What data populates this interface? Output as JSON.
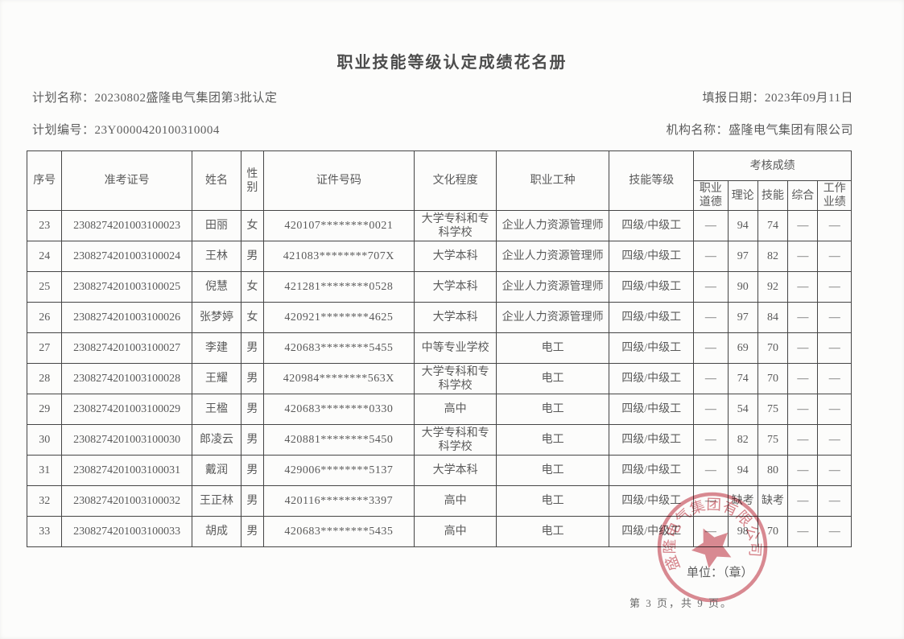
{
  "title": "职业技能等级认定成绩花名册",
  "meta": {
    "plan_name_label": "计划名称：",
    "plan_name": "20230802盛隆电气集团第3批认定",
    "report_date_label": "填报日期：",
    "report_date": "2023年09月11日",
    "plan_number_label": "计划编号：",
    "plan_number": "23Y0000420100310004",
    "org_name_label": "机构名称：",
    "org_name": "盛隆电气集团有限公司"
  },
  "table": {
    "headers": {
      "seq": "序号",
      "exam_no": "准考证号",
      "name": "姓名",
      "gender": "性别",
      "id_no": "证件号码",
      "education": "文化程度",
      "occupation": "职业工种",
      "skill_level": "技能等级",
      "scores_group": "考核成绩",
      "score_cols": [
        "职业道德",
        "理论",
        "技能",
        "综合",
        "工作业绩"
      ]
    },
    "rows": [
      {
        "seq": "23",
        "exam_no": "2308274201003100023",
        "name": "田丽",
        "gender": "女",
        "id_no": "420107********0021",
        "education": "大学专科和专科学校",
        "occupation": "企业人力资源管理师",
        "skill_level": "四级/中级工",
        "scores": [
          "—",
          "94",
          "74",
          "—",
          "—"
        ]
      },
      {
        "seq": "24",
        "exam_no": "2308274201003100024",
        "name": "王林",
        "gender": "男",
        "id_no": "421083********707X",
        "education": "大学本科",
        "occupation": "企业人力资源管理师",
        "skill_level": "四级/中级工",
        "scores": [
          "—",
          "97",
          "82",
          "—",
          "—"
        ]
      },
      {
        "seq": "25",
        "exam_no": "2308274201003100025",
        "name": "倪慧",
        "gender": "女",
        "id_no": "421281********0528",
        "education": "大学本科",
        "occupation": "企业人力资源管理师",
        "skill_level": "四级/中级工",
        "scores": [
          "—",
          "90",
          "92",
          "—",
          "—"
        ]
      },
      {
        "seq": "26",
        "exam_no": "2308274201003100026",
        "name": "张梦婷",
        "gender": "女",
        "id_no": "420921********4625",
        "education": "大学本科",
        "occupation": "企业人力资源管理师",
        "skill_level": "四级/中级工",
        "scores": [
          "—",
          "97",
          "84",
          "—",
          "—"
        ]
      },
      {
        "seq": "27",
        "exam_no": "2308274201003100027",
        "name": "李建",
        "gender": "男",
        "id_no": "420683********5455",
        "education": "中等专业学校",
        "occupation": "电工",
        "skill_level": "四级/中级工",
        "scores": [
          "—",
          "69",
          "70",
          "—",
          "—"
        ]
      },
      {
        "seq": "28",
        "exam_no": "2308274201003100028",
        "name": "王耀",
        "gender": "男",
        "id_no": "420984********563X",
        "education": "大学专科和专科学校",
        "occupation": "电工",
        "skill_level": "四级/中级工",
        "scores": [
          "—",
          "74",
          "70",
          "—",
          "—"
        ]
      },
      {
        "seq": "29",
        "exam_no": "2308274201003100029",
        "name": "王楹",
        "gender": "男",
        "id_no": "420683********0330",
        "education": "高中",
        "occupation": "电工",
        "skill_level": "四级/中级工",
        "scores": [
          "—",
          "54",
          "75",
          "—",
          "—"
        ]
      },
      {
        "seq": "30",
        "exam_no": "2308274201003100030",
        "name": "郎凌云",
        "gender": "男",
        "id_no": "420881********5450",
        "education": "大学专科和专科学校",
        "occupation": "电工",
        "skill_level": "四级/中级工",
        "scores": [
          "—",
          "82",
          "75",
          "—",
          "—"
        ]
      },
      {
        "seq": "31",
        "exam_no": "2308274201003100031",
        "name": "戴润",
        "gender": "男",
        "id_no": "429006********5137",
        "education": "大学本科",
        "occupation": "电工",
        "skill_level": "四级/中级工",
        "scores": [
          "—",
          "94",
          "80",
          "—",
          "—"
        ]
      },
      {
        "seq": "32",
        "exam_no": "2308274201003100032",
        "name": "王正林",
        "gender": "男",
        "id_no": "420116********3397",
        "education": "高中",
        "occupation": "电工",
        "skill_level": "四级/中级工",
        "scores": [
          "—",
          "缺考",
          "缺考",
          "—",
          "—"
        ]
      },
      {
        "seq": "33",
        "exam_no": "2308274201003100033",
        "name": "胡成",
        "gender": "男",
        "id_no": "420683********5435",
        "education": "高中",
        "occupation": "电工",
        "skill_level": "四级/中级工",
        "scores": [
          "—",
          "98",
          "70",
          "—",
          "—"
        ]
      }
    ]
  },
  "footer": {
    "unit_label": "单位：（章）",
    "page_info": "第 3 页，共 9 页。"
  },
  "stamp": {
    "text": "盛隆电气集团有限公司",
    "color": "#c9545f"
  }
}
